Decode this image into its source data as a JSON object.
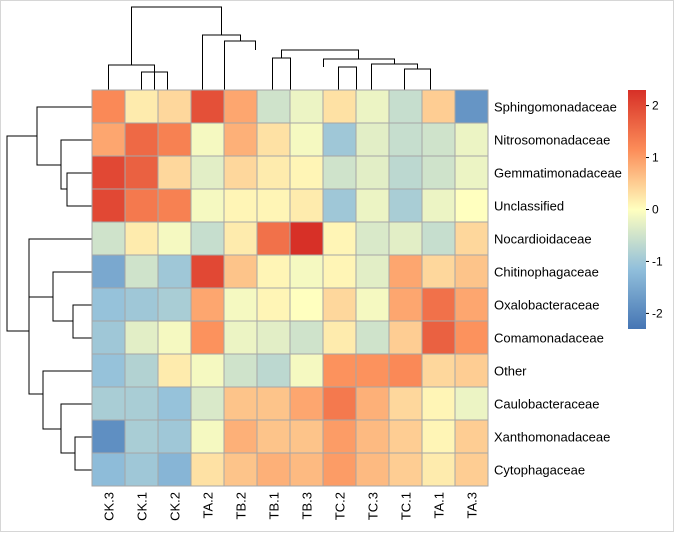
{
  "chart_data": {
    "type": "heatmap",
    "title": "",
    "columns": [
      "CK.3",
      "CK.1",
      "CK.2",
      "TA.2",
      "TB.2",
      "TB.1",
      "TB.3",
      "TC.2",
      "TC.3",
      "TC.1",
      "TA.1",
      "TA.3"
    ],
    "rows": [
      "Sphingomonadaceae",
      "Nitrosomonadaceae",
      "Gemmatimonadaceae",
      "Unclassified",
      "Nocardioidaceae",
      "Chitinophagaceae",
      "Oxalobacteraceae",
      "Comamonadaceae",
      "Other",
      "Caulobacteraceae",
      "Xanthomonadaceae",
      "Cytophagaceae"
    ],
    "values": [
      [
        1.2,
        0.2,
        0.4,
        1.9,
        0.9,
        -0.5,
        -0.2,
        0.3,
        -0.2,
        -0.6,
        0.5,
        -1.8
      ],
      [
        0.9,
        1.6,
        1.3,
        -0.1,
        0.8,
        0.3,
        -0.1,
        -1.0,
        -0.3,
        -0.6,
        -0.5,
        -0.2
      ],
      [
        2.0,
        1.7,
        0.4,
        -0.3,
        0.4,
        0.2,
        0.1,
        -0.5,
        -0.3,
        -0.7,
        -0.5,
        -0.2
      ],
      [
        2.0,
        1.4,
        1.3,
        -0.1,
        0.1,
        0.1,
        0.2,
        -1.0,
        -0.2,
        -0.9,
        -0.2,
        0.0
      ],
      [
        -0.5,
        0.2,
        -0.1,
        -0.6,
        0.2,
        1.5,
        2.3,
        0.1,
        -0.4,
        -0.3,
        -0.6,
        0.4
      ],
      [
        -1.5,
        -0.5,
        -1.0,
        2.0,
        0.6,
        0.1,
        -0.1,
        0.1,
        -0.3,
        0.9,
        0.4,
        0.6
      ],
      [
        -1.1,
        -1.0,
        -0.9,
        0.9,
        -0.1,
        0.1,
        0.0,
        0.4,
        -0.1,
        0.9,
        1.5,
        0.9
      ],
      [
        -1.0,
        -0.3,
        -0.1,
        1.1,
        -0.2,
        -0.3,
        -0.5,
        0.2,
        -0.5,
        0.5,
        1.7,
        1.1
      ],
      [
        -1.1,
        -0.8,
        0.2,
        -0.1,
        -0.5,
        -0.7,
        -0.1,
        1.1,
        1.1,
        1.2,
        0.4,
        0.5
      ],
      [
        -0.9,
        -0.9,
        -1.1,
        -0.4,
        0.6,
        0.6,
        0.9,
        1.4,
        0.8,
        0.4,
        0.1,
        -0.2
      ],
      [
        -1.9,
        -0.9,
        -1.0,
        -0.1,
        0.8,
        0.6,
        0.6,
        1.0,
        0.7,
        0.5,
        0.1,
        0.5
      ],
      [
        -1.2,
        -1.0,
        -1.3,
        0.3,
        0.6,
        0.8,
        0.7,
        1.0,
        0.7,
        0.5,
        0.2,
        0.5
      ]
    ],
    "legend": {
      "position": "right",
      "ticks": [
        2,
        1,
        0,
        -1,
        -2
      ],
      "range": [
        -2.3,
        2.3
      ]
    },
    "colors": {
      "low": "#4575b4",
      "mid": "#ffffbf",
      "high": "#d73027",
      "cell_border": "#a6a6a6"
    },
    "column_dendrogram": true,
    "row_dendrogram": true
  }
}
